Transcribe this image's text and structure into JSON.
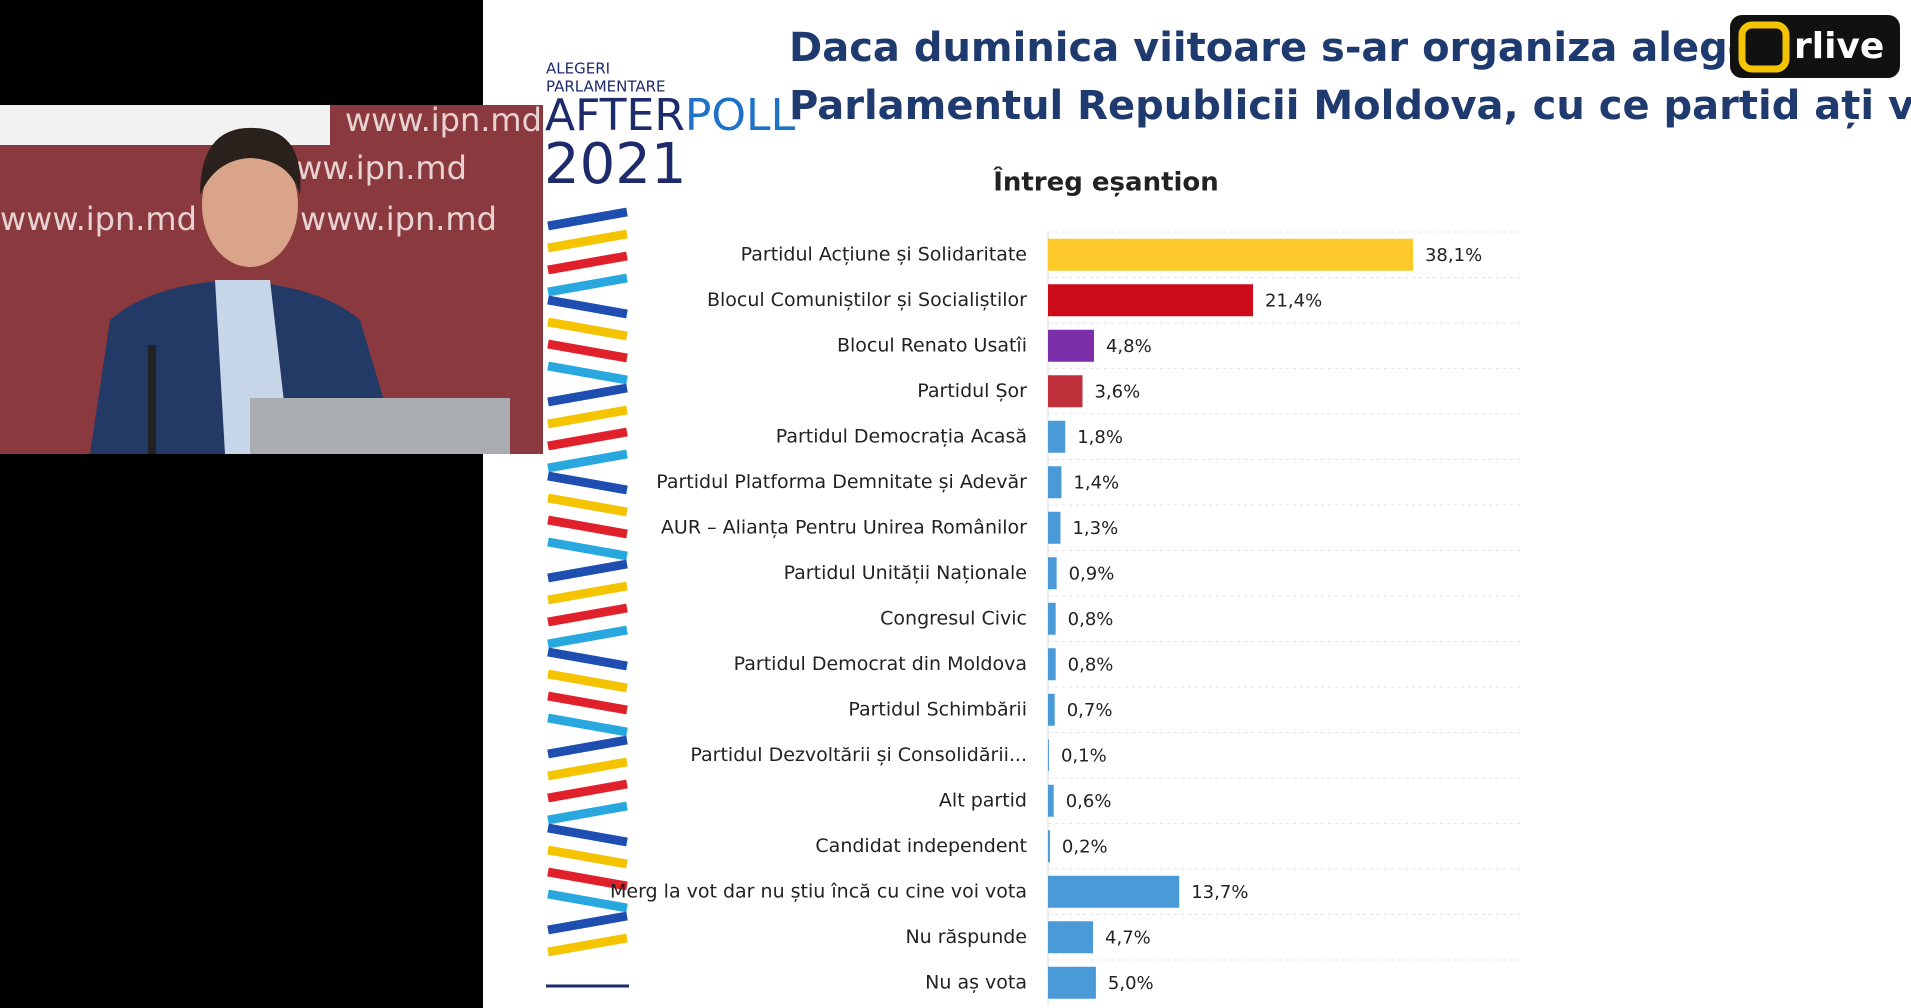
{
  "chart_data": {
    "type": "bar",
    "orientation": "horizontal",
    "title": [
      "Daca duminica viitoare s-ar organiza alegeri pe",
      "Parlamentul Republicii Moldova, cu ce partid ați vota?"
    ],
    "subtitle": "Întreg eșantion",
    "categories": [
      "Partidul Acțiune și Solidaritate",
      "Blocul Comuniștilor și Socialiștilor",
      "Blocul Renato Usatîi",
      "Partidul Șor",
      "Partidul Democrația Acasă",
      "Partidul Platforma Demnitate și Adevăr",
      "AUR – Alianța Pentru Unirea Românilor",
      "Partidul Unității Naționale",
      "Congresul Civic",
      "Partidul Democrat din Moldova",
      "Partidul Schimbării",
      "Partidul Dezvoltării și Consolidării...",
      "Alt partid",
      "Candidat independent",
      "Merg la vot dar nu știu încă cu cine voi vota",
      "Nu răspunde",
      "Nu aș vota"
    ],
    "values": [
      38.1,
      21.4,
      4.8,
      3.6,
      1.8,
      1.4,
      1.3,
      0.9,
      0.8,
      0.8,
      0.7,
      0.1,
      0.6,
      0.2,
      13.7,
      4.7,
      5.0
    ],
    "value_labels": [
      "38,1%",
      "21,4%",
      "4,8%",
      "3,6%",
      "1,8%",
      "1,4%",
      "1,3%",
      "0,9%",
      "0,8%",
      "0,8%",
      "0,7%",
      "0,1%",
      "0,6%",
      "0,2%",
      "13,7%",
      "4,7%",
      "5,0%"
    ],
    "colors": [
      "#fcc82a",
      "#cc0a1a",
      "#7b2fa8",
      "#c0303a",
      "#4a9ad8",
      "#4a9ad8",
      "#4a9ad8",
      "#4a9ad8",
      "#4a9ad8",
      "#4a9ad8",
      "#4a9ad8",
      "#4a9ad8",
      "#4a9ad8",
      "#4a9ad8",
      "#4a9ad8",
      "#4a9ad8",
      "#4a9ad8"
    ],
    "xlim": [
      0,
      50
    ],
    "grid": true
  },
  "branding": {
    "line1": "ALEGERI",
    "line2": "PARLAMENTARE",
    "poll_a": "AFTER",
    "poll_b": "POLL",
    "year": "2021"
  },
  "watermark": "rlive",
  "video": {
    "backdrop": "www.ipn.md"
  }
}
